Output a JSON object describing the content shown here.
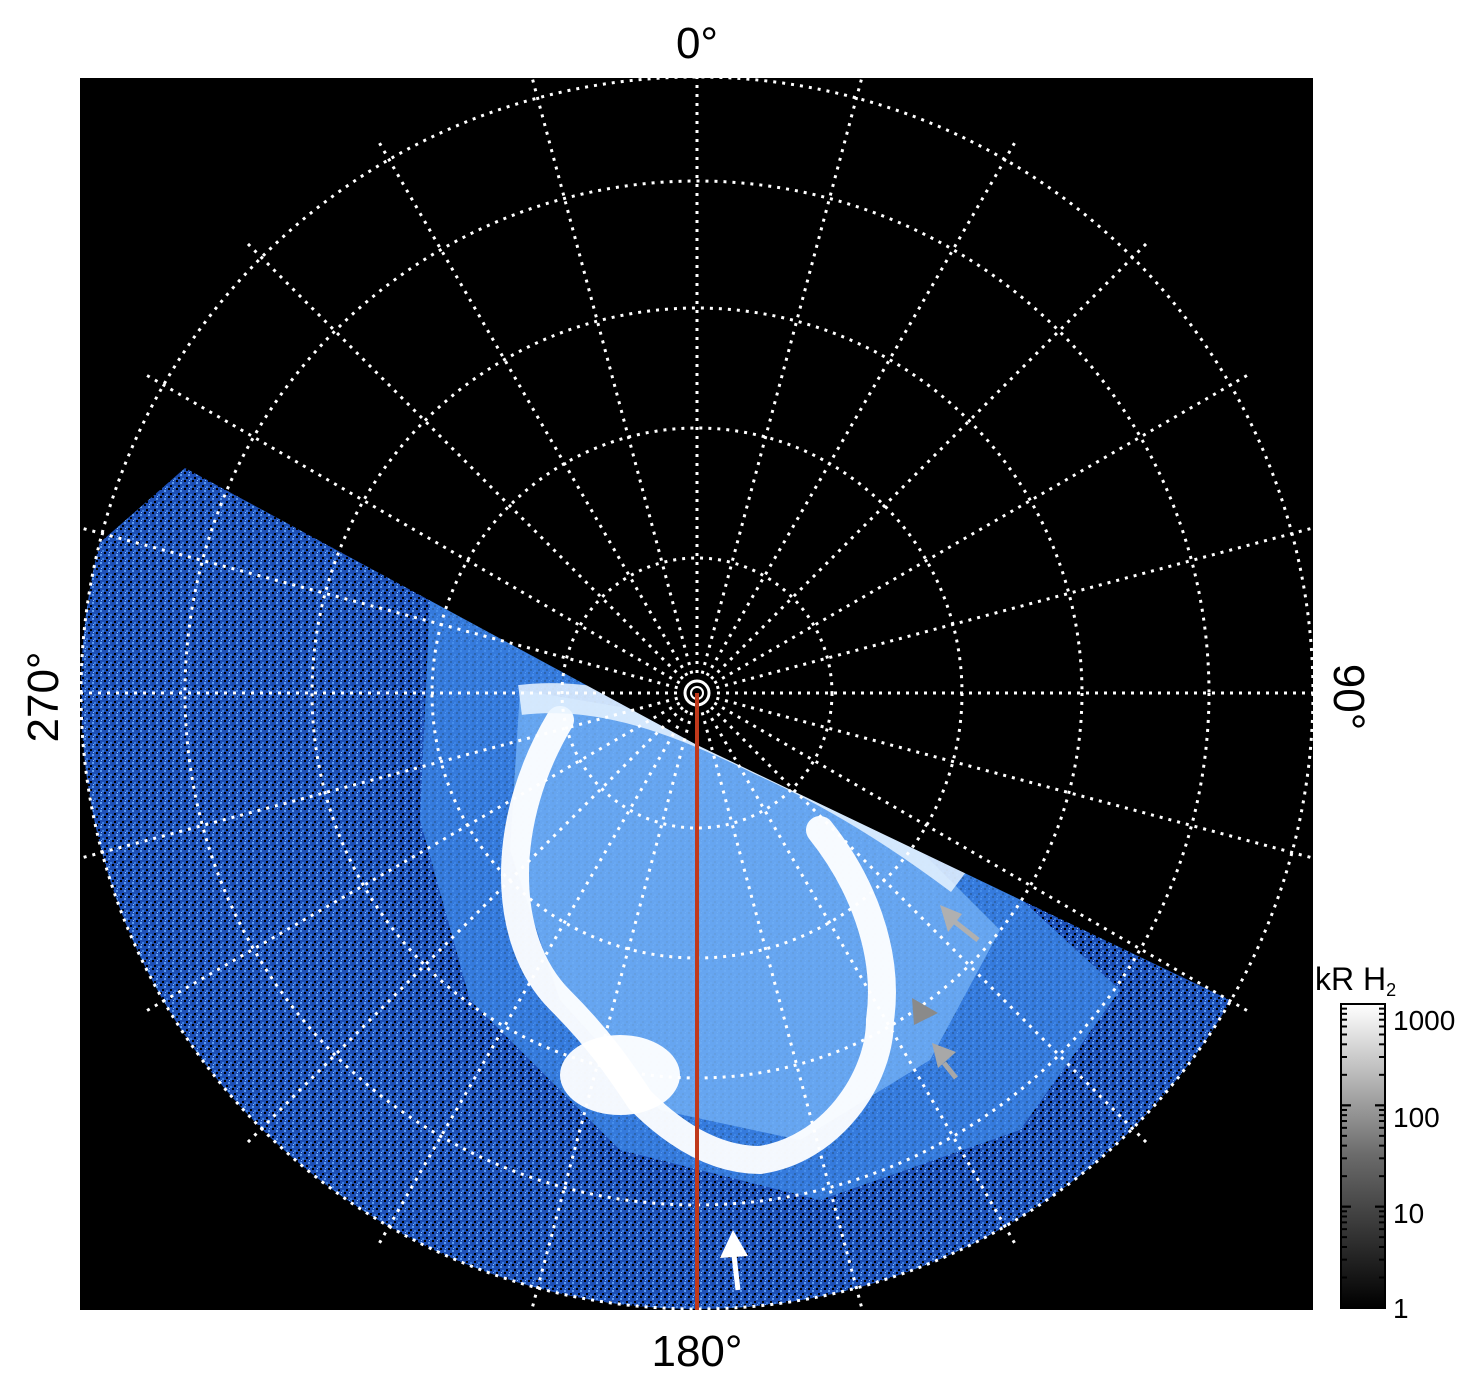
{
  "labels": {
    "top": "0°",
    "bottom": "180°",
    "left": "270°",
    "right": "90°"
  },
  "colorbar": {
    "unit": "kR H",
    "unit_sub": "2",
    "ticks": [
      "1000",
      "100",
      "10",
      "1"
    ],
    "scale": "log"
  },
  "colors": {
    "background": "#000000",
    "grid": "#ffffff",
    "meridian": "#c0391b",
    "aurora_low": "#0b2a8a",
    "aurora_mid": "#2f7de0",
    "aurora_high": "#ffffff",
    "arrow_white": "#ffffff",
    "arrow_grey": "#a8a8a8"
  }
}
